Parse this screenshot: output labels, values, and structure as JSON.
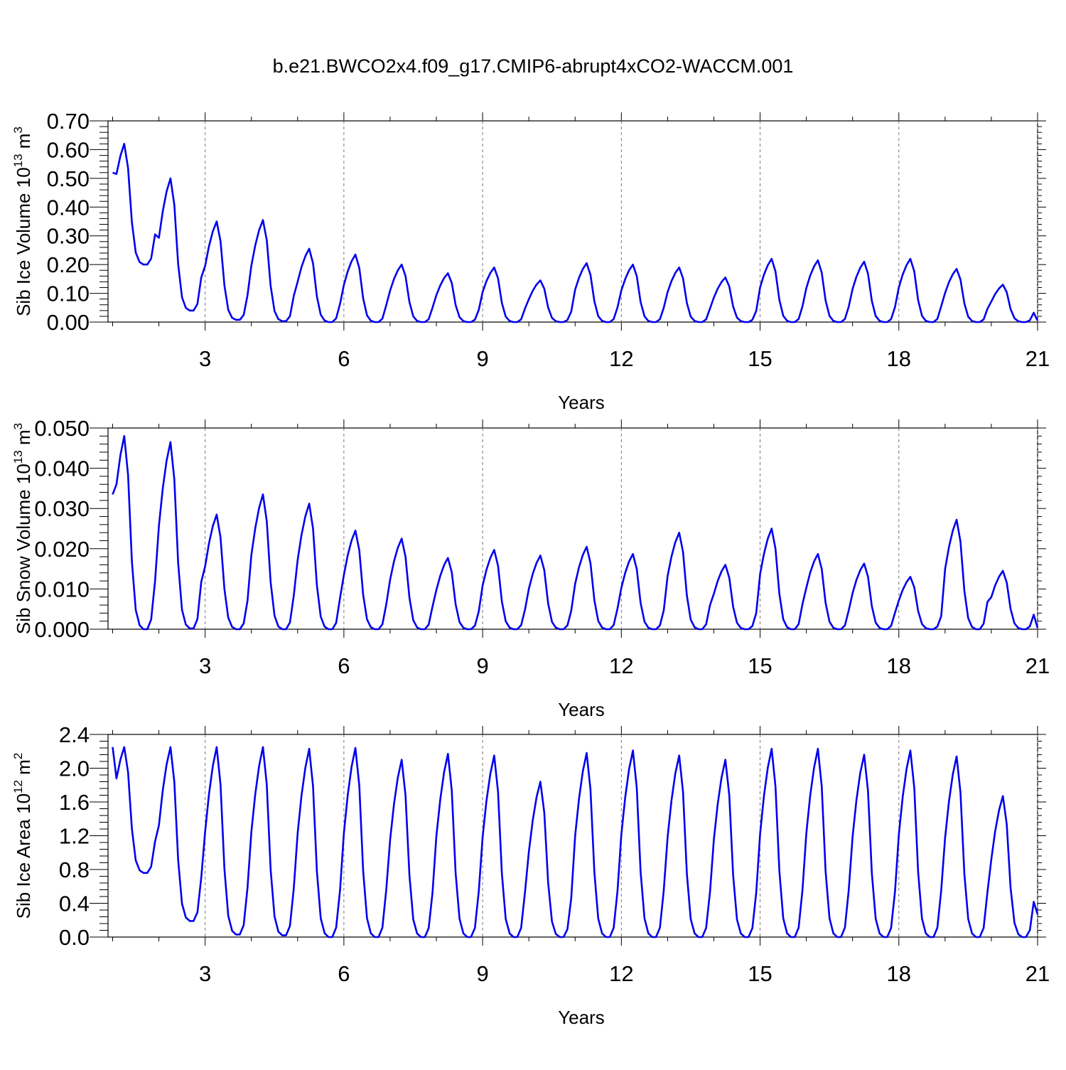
{
  "title": "b.e21.BWCO2x4.f09_g17.CMIP6-abrupt4xCO2-WACCM.001",
  "chart_data": [
    {
      "type": "line",
      "xlabel": "Years",
      "ylabel": "Sib Ice Volume 10",
      "ylabel_exp": "13",
      "ylabel_unit": " m",
      "ylabel_unit_exp": "3",
      "xlim": [
        0.9,
        21
      ],
      "ylim": [
        0,
        0.7
      ],
      "xticks": [
        "3",
        "6",
        "9",
        "12",
        "15",
        "18",
        "21"
      ],
      "yticks": [
        "0.00",
        "0.10",
        "0.20",
        "0.30",
        "0.40",
        "0.50",
        "0.60",
        "0.70"
      ],
      "color": "#0000ee",
      "grid": "dashed vertical at major x ticks",
      "peaks": [
        0.62,
        0.5,
        0.35,
        0.355,
        0.255,
        0.235,
        0.2,
        0.17,
        0.19,
        0.145,
        0.205,
        0.2,
        0.19,
        0.155,
        0.22,
        0.215,
        0.21,
        0.22,
        0.185,
        0.13
      ],
      "troughs": [
        0.2,
        0.04,
        0.008,
        0.003,
        0,
        0,
        0,
        0,
        0,
        0,
        0,
        0,
        0,
        0,
        0,
        0,
        0,
        0,
        0,
        0
      ],
      "start": 0.52,
      "end": 0.005
    },
    {
      "type": "line",
      "xlabel": "Years",
      "ylabel": "Sib Snow Volume 10",
      "ylabel_exp": "13",
      "ylabel_unit": " m",
      "ylabel_unit_exp": "3",
      "xlim": [
        0.9,
        21
      ],
      "ylim": [
        0,
        0.05
      ],
      "xticks": [
        "3",
        "6",
        "9",
        "12",
        "15",
        "18",
        "21"
      ],
      "yticks": [
        "0.000",
        "0.010",
        "0.020",
        "0.030",
        "0.040",
        "0.050"
      ],
      "color": "#0000ee",
      "grid": "dashed vertical at major x ticks",
      "peaks": [
        0.048,
        0.0465,
        0.0285,
        0.0335,
        0.0312,
        0.0245,
        0.0225,
        0.0177,
        0.0197,
        0.0183,
        0.0205,
        0.0187,
        0.024,
        0.016,
        0.025,
        0.0187,
        0.0163,
        0.013,
        0.0272,
        0.0145
      ],
      "troughs": [
        0,
        0.0002,
        0,
        0,
        0,
        0,
        0,
        0,
        0,
        0,
        0,
        0,
        0,
        0,
        0,
        0,
        0,
        0,
        0,
        0
      ],
      "start": 0.0335,
      "end": 0.0003
    },
    {
      "type": "line",
      "xlabel": "Years",
      "ylabel": "Sib Ice Area 10",
      "ylabel_exp": "12",
      "ylabel_unit": " m",
      "ylabel_unit_exp": "2",
      "xlim": [
        0.9,
        21
      ],
      "ylim": [
        0,
        2.4
      ],
      "xticks": [
        "3",
        "6",
        "9",
        "12",
        "15",
        "18",
        "21"
      ],
      "yticks": [
        "0.0",
        "0.4",
        "0.8",
        "1.2",
        "1.6",
        "2.0",
        "2.4"
      ],
      "color": "#0000ee",
      "grid": "dashed vertical at major x ticks",
      "peaks": [
        2.25,
        2.25,
        2.25,
        2.25,
        2.23,
        2.24,
        2.1,
        2.17,
        2.15,
        1.84,
        2.18,
        2.21,
        2.15,
        2.1,
        2.23,
        2.23,
        2.16,
        2.21,
        2.14,
        1.67
      ],
      "troughs": [
        0.76,
        0.19,
        0.03,
        0.02,
        0.0,
        0.0,
        0.0,
        0.0,
        0.0,
        0.0,
        0.0,
        0.0,
        0.0,
        0.0,
        0.0,
        0.0,
        0.0,
        0.0,
        0.0,
        0.0
      ],
      "start": 2.25,
      "end": 0.27
    }
  ]
}
